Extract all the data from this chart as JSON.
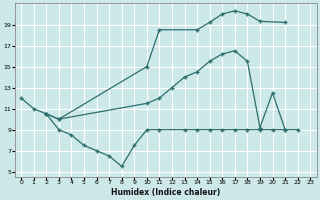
{
  "xlabel": "Humidex (Indice chaleur)",
  "bg_color": "#cce8e8",
  "grid_color": "#b0d4d4",
  "line_color": "#2d6e6e",
  "xlim": [
    -0.5,
    23.5
  ],
  "ylim": [
    4.5,
    21
  ],
  "xticks": [
    0,
    1,
    2,
    3,
    4,
    5,
    6,
    7,
    8,
    9,
    10,
    11,
    12,
    13,
    14,
    15,
    16,
    17,
    18,
    19,
    20,
    21,
    22,
    23
  ],
  "yticks": [
    5,
    7,
    9,
    11,
    13,
    15,
    17,
    19
  ],
  "line1_x": [
    0,
    1,
    2,
    3,
    10,
    11,
    14,
    15,
    16,
    17,
    18,
    19,
    21
  ],
  "line1_y": [
    12,
    11,
    10.5,
    10,
    15,
    18.5,
    18.5,
    19.2,
    20.0,
    20.3,
    20.0,
    19.3,
    19.2
  ],
  "line2_x": [
    2,
    3,
    10,
    11,
    12,
    13,
    14,
    15,
    16,
    17,
    18,
    19,
    20,
    21
  ],
  "line2_y": [
    10.5,
    10,
    11.5,
    12,
    13,
    14,
    14.5,
    15.5,
    16.2,
    16.5,
    15.5,
    9.2,
    12.5,
    9.0
  ],
  "line3_x": [
    2,
    3,
    4,
    5,
    6,
    7,
    8,
    9,
    10,
    11,
    13,
    14,
    15,
    16,
    17,
    18,
    19,
    20,
    21,
    22
  ],
  "line3_y": [
    10.5,
    9.0,
    8.5,
    7.5,
    7.0,
    6.5,
    5.5,
    7.5,
    9.0,
    9.0,
    9.0,
    9.0,
    9.0,
    9.0,
    9.0,
    9.0,
    9.0,
    9.0,
    9.0,
    9.0
  ]
}
